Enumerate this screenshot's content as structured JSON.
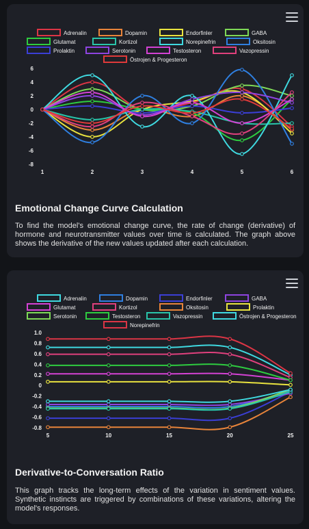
{
  "cards": [
    {
      "title": "Emotional Change Curve Calculation",
      "description": "To find the model's emotional change curve, the rate of change (derivative) of hormone and neurotransmitter values over time is calculated. The graph above shows the derivative of the new values updated after each calculation.",
      "menu_icon": "hamburger-menu-icon"
    },
    {
      "title": "Derivative-to-Conversation Ratio",
      "description": "This graph tracks the long-term effects of the variation in sentiment values. Synthetic instincts are triggered by combinations of these variations, altering the model's responses.",
      "menu_icon": "hamburger-menu-icon"
    }
  ],
  "chart_data": [
    {
      "type": "line",
      "x": [
        1,
        2,
        3,
        4,
        5,
        6
      ],
      "ylim": [
        -8,
        6
      ],
      "yticks": [
        6,
        4,
        2,
        0,
        -2,
        -4,
        -6,
        -8
      ],
      "grid": false,
      "legend_position": "top",
      "series": [
        {
          "name": "Adrenalin",
          "color": "#dc3545",
          "values": [
            0,
            4.0,
            0,
            1.0,
            3.0,
            -2.5
          ]
        },
        {
          "name": "Dopamin",
          "color": "#e8843a",
          "values": [
            0,
            -3.0,
            0,
            -1.0,
            2.0,
            -3.0
          ]
        },
        {
          "name": "Endorfinler",
          "color": "#e9e33f",
          "values": [
            0,
            -4.0,
            0,
            1.2,
            2.5,
            -3.5
          ]
        },
        {
          "name": "GABA",
          "color": "#7ed957",
          "values": [
            0,
            3.0,
            0,
            0.5,
            3.5,
            2.0
          ]
        },
        {
          "name": "Glutamat",
          "color": "#2ecc40",
          "values": [
            0,
            1.2,
            0,
            -0.5,
            -4.5,
            1.5
          ]
        },
        {
          "name": "Kortizol",
          "color": "#29c4a9",
          "values": [
            0,
            -1.5,
            0,
            -0.3,
            -2.0,
            -2.0
          ]
        },
        {
          "name": "Norepinefrin",
          "color": "#3fd9e0",
          "values": [
            0,
            5.0,
            -2.5,
            2.0,
            -6.5,
            5.0
          ]
        },
        {
          "name": "Oksitosin",
          "color": "#2f7fe0",
          "values": [
            0,
            -4.8,
            2.0,
            -2.0,
            5.8,
            -5.0
          ]
        },
        {
          "name": "Prolaktin",
          "color": "#3b3fd6",
          "values": [
            0,
            0.5,
            -0.5,
            0.5,
            -0.5,
            0.2
          ]
        },
        {
          "name": "Serotonin",
          "color": "#8e44e0",
          "values": [
            0,
            2.0,
            -0.8,
            1.5,
            2.5,
            1.0
          ]
        },
        {
          "name": "Testosteron",
          "color": "#d442d4",
          "values": [
            0,
            2.5,
            -1.0,
            1.0,
            -2.0,
            1.5
          ]
        },
        {
          "name": "Vazopressin",
          "color": "#e0407d",
          "values": [
            0,
            -2.5,
            1.0,
            -1.0,
            -3.5,
            2.5
          ]
        },
        {
          "name": "Östrojen & Progesteron",
          "color": "#e03a3a",
          "values": [
            0,
            -2.0,
            0.5,
            -0.5,
            1.5,
            -2.8
          ]
        }
      ]
    },
    {
      "type": "line",
      "x": [
        5,
        10,
        15,
        20,
        25
      ],
      "ylim": [
        -0.8,
        1.0
      ],
      "yticks": [
        1.0,
        0.8,
        0.6,
        0.4,
        0.2,
        0,
        -0.2,
        -0.4,
        -0.6,
        -0.8
      ],
      "grid": false,
      "legend_position": "top",
      "series": [
        {
          "name": "Adrenalin",
          "color": "#3fd9e0",
          "values": [
            0.72,
            0.72,
            0.72,
            0.72,
            0.2
          ]
        },
        {
          "name": "Dopamin",
          "color": "#2f7fe0",
          "values": [
            -0.4,
            -0.4,
            -0.4,
            -0.4,
            -0.1
          ]
        },
        {
          "name": "Endorfinler",
          "color": "#3b3fd6",
          "values": [
            -0.62,
            -0.62,
            -0.62,
            -0.62,
            -0.12
          ]
        },
        {
          "name": "GABA",
          "color": "#8e44e0",
          "values": [
            -0.36,
            -0.36,
            -0.36,
            -0.36,
            -0.15
          ]
        },
        {
          "name": "Glutamat",
          "color": "#d442d4",
          "values": [
            0.22,
            0.22,
            0.22,
            0.22,
            0.1
          ]
        },
        {
          "name": "Kortizol",
          "color": "#e0407d",
          "values": [
            0.59,
            0.59,
            0.59,
            0.59,
            0.15
          ]
        },
        {
          "name": "Oksitosin",
          "color": "#e8843a",
          "values": [
            -0.79,
            -0.79,
            -0.79,
            -0.79,
            -0.22
          ]
        },
        {
          "name": "Prolaktin",
          "color": "#e9e33f",
          "values": [
            0.07,
            0.07,
            0.07,
            0.07,
            0.01
          ]
        },
        {
          "name": "Serotonin",
          "color": "#7ed957",
          "values": [
            -0.43,
            -0.43,
            -0.43,
            -0.43,
            -0.08
          ]
        },
        {
          "name": "Testosteron",
          "color": "#2ecc40",
          "values": [
            0.38,
            0.38,
            0.38,
            0.38,
            0.1
          ]
        },
        {
          "name": "Vazopressin",
          "color": "#29c4a9",
          "values": [
            -0.44,
            -0.44,
            -0.44,
            -0.44,
            -0.12
          ]
        },
        {
          "name": "Östrojen & Progesteron",
          "color": "#3fd9e0",
          "values": [
            -0.3,
            -0.3,
            -0.3,
            -0.3,
            -0.08
          ]
        },
        {
          "name": "Norepinefrin",
          "color": "#dc3545",
          "values": [
            0.88,
            0.88,
            0.88,
            0.88,
            0.23
          ]
        }
      ]
    }
  ]
}
